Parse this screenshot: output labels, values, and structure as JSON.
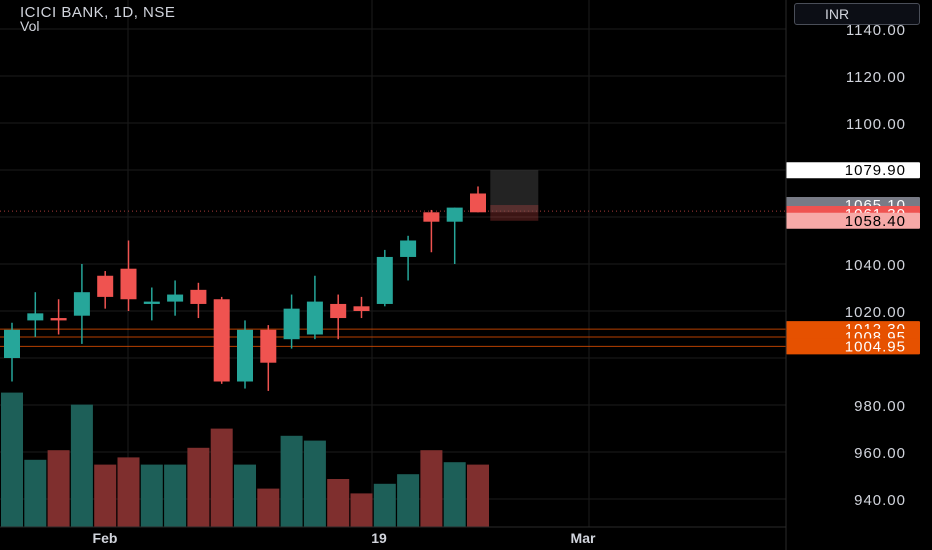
{
  "header": {
    "symbol_line": "ICICI BANK, 1D, NSE",
    "indicator": "Vol"
  },
  "currency": "INR",
  "colors": {
    "up": "#26a69a",
    "down": "#ef5350",
    "vol_up": "#1d5f58",
    "vol_down": "#7f2f2e",
    "level": "#e65100",
    "grid": "#1b1b1b",
    "axis_text": "#d1d4dc"
  },
  "chart_data": {
    "type": "candlestick",
    "ylim": [
      930,
      1150
    ],
    "y_ticks": [
      940,
      960,
      980,
      1000,
      1020,
      1040,
      1060,
      1080,
      1100,
      1120,
      1140
    ],
    "y_tick_labels": [
      "940.00",
      "960.00",
      "980.00",
      "",
      "1020.00",
      "1040.00",
      "",
      "",
      "1100.00",
      "1120.00",
      "1140.00"
    ],
    "x_labels": [
      "Feb",
      "19",
      "Mar"
    ],
    "candles": [
      {
        "o": 1000,
        "h": 1015,
        "l": 990,
        "c": 1012,
        "v": 0.56
      },
      {
        "o": 1016,
        "h": 1028,
        "l": 1009,
        "c": 1019,
        "v": 0.28
      },
      {
        "o": 1017,
        "h": 1025,
        "l": 1010,
        "c": 1016,
        "v": 0.32
      },
      {
        "o": 1018,
        "h": 1040,
        "l": 1006,
        "c": 1028,
        "v": 0.51
      },
      {
        "o": 1035,
        "h": 1037,
        "l": 1021,
        "c": 1026,
        "v": 0.26
      },
      {
        "o": 1038,
        "h": 1050,
        "l": 1020,
        "c": 1025,
        "v": 0.29
      },
      {
        "o": 1023,
        "h": 1030,
        "l": 1016,
        "c": 1024,
        "v": 0.26
      },
      {
        "o": 1024,
        "h": 1033,
        "l": 1018,
        "c": 1027,
        "v": 0.26
      },
      {
        "o": 1029,
        "h": 1032,
        "l": 1017,
        "c": 1023,
        "v": 0.33
      },
      {
        "o": 1025,
        "h": 1026,
        "l": 989,
        "c": 990,
        "v": 0.41
      },
      {
        "o": 990,
        "h": 1016,
        "l": 987,
        "c": 1012,
        "v": 0.26
      },
      {
        "o": 1012,
        "h": 1014,
        "l": 986,
        "c": 998,
        "v": 0.16
      },
      {
        "o": 1008,
        "h": 1027,
        "l": 1004,
        "c": 1021,
        "v": 0.38
      },
      {
        "o": 1010,
        "h": 1035,
        "l": 1008,
        "c": 1024,
        "v": 0.36
      },
      {
        "o": 1023,
        "h": 1027,
        "l": 1008,
        "c": 1017,
        "v": 0.2
      },
      {
        "o": 1022,
        "h": 1026,
        "l": 1017,
        "c": 1020,
        "v": 0.14
      },
      {
        "o": 1023,
        "h": 1046,
        "l": 1022,
        "c": 1043,
        "v": 0.18
      },
      {
        "o": 1043,
        "h": 1052,
        "l": 1033,
        "c": 1050,
        "v": 0.22
      },
      {
        "o": 1062,
        "h": 1063,
        "l": 1045,
        "c": 1058,
        "v": 0.32
      },
      {
        "o": 1058,
        "h": 1064,
        "l": 1040,
        "c": 1064,
        "v": 0.27
      },
      {
        "o": 1070,
        "h": 1073,
        "l": 1062,
        "c": 1062,
        "v": 0.26
      }
    ],
    "open_candle": {
      "o": 1062,
      "c": 1080
    },
    "price_labels": [
      {
        "text": "1079.90",
        "value": 1079.9,
        "bg": "#ffffff",
        "fg": "#000000"
      },
      {
        "text": "1065.10",
        "value": 1065.1,
        "bg": "#787b86",
        "fg": "#ffffff"
      },
      {
        "text": "1061.30",
        "value": 1061.3,
        "bg": "#ef5350",
        "fg": "#ffffff"
      },
      {
        "text": "1058.40",
        "value": 1058.4,
        "bg": "#f7a9a7",
        "fg": "#000000"
      },
      {
        "text": "1012.30",
        "value": 1012.3,
        "bg": "#e65100",
        "fg": "#ffffff"
      },
      {
        "text": "1008.95",
        "value": 1008.95,
        "bg": "#e65100",
        "fg": "#ffffff"
      },
      {
        "text": "1004.95",
        "value": 1004.95,
        "bg": "#e65100",
        "fg": "#ffffff"
      }
    ],
    "levels": [
      1012.3,
      1008.95,
      1004.95
    ],
    "last_price": 1062.5
  }
}
